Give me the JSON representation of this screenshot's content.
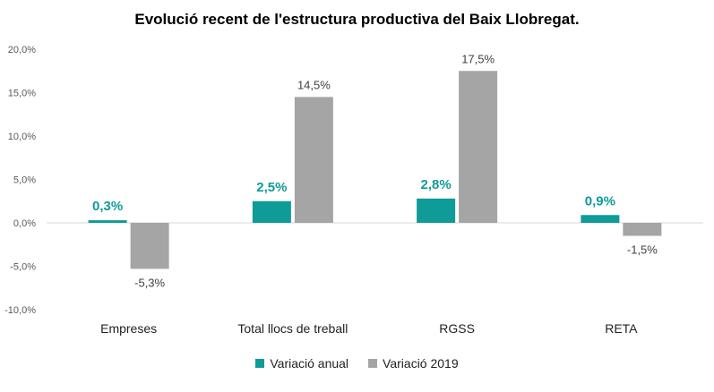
{
  "chart_data": {
    "type": "bar",
    "title": "Evolució recent de l'estructura productiva del Baix Llobregat.",
    "categories": [
      "Empreses",
      "Total llocs de treball",
      "RGSS",
      "RETA"
    ],
    "series": [
      {
        "name": "Variació anual",
        "values": [
          0.3,
          2.5,
          2.8,
          0.9
        ],
        "labels": [
          "0,3%",
          "2,5%",
          "2,8%",
          "0,9%"
        ],
        "color": "#0f9b97"
      },
      {
        "name": "Variació 2019",
        "values": [
          -5.3,
          14.5,
          17.5,
          -1.5
        ],
        "labels": [
          "-5,3%",
          "14,5%",
          "17,5%",
          "-1,5%"
        ],
        "color": "#a5a5a5"
      }
    ],
    "ylim": [
      -10,
      20
    ],
    "yticks": [
      -10,
      -5,
      0,
      5,
      10,
      15,
      20
    ],
    "ytick_labels": [
      "-10,0%",
      "-5,0%",
      "0,0%",
      "5,0%",
      "10,0%",
      "15,0%",
      "20,0%"
    ],
    "grid": false,
    "legend_position": "bottom",
    "xlabel": "",
    "ylabel": ""
  }
}
